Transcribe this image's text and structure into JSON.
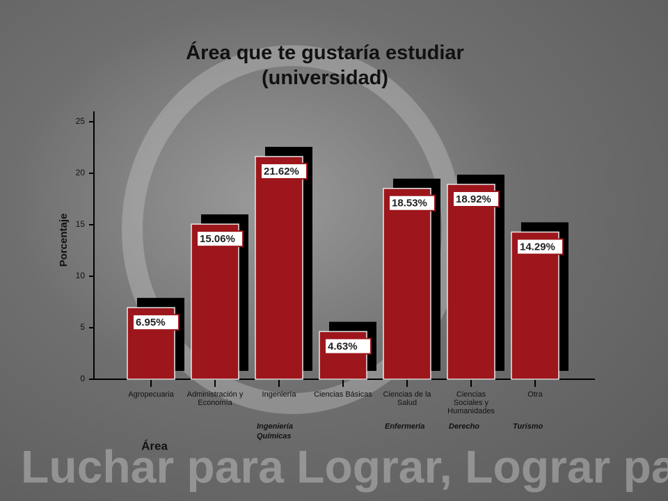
{
  "chart_data": {
    "type": "bar",
    "title": "Área que te gustaría estudiar (universidad)",
    "background_text": "Luchar para Lograr, Lograr para Dar",
    "y_label": "Porcentaje",
    "x_label": "Área",
    "categories": [
      "Agropecuaria",
      "Administración y Economía",
      "Ingeniería",
      "Ciencias Básicas",
      "Ciencias de la Salud",
      "Ciencias Sociales y Humanidades",
      "Otra"
    ],
    "sub_labels": [
      null,
      null,
      "Ingeniería Químicas",
      null,
      "Enfermería",
      "Derecho",
      "Turismo"
    ],
    "values": [
      6.95,
      15.06,
      21.62,
      4.63,
      18.53,
      18.92,
      14.29
    ],
    "value_labels": [
      "6.95%",
      "15.06%",
      "21.62%",
      "4.63%",
      "18.53%",
      "18.92%",
      "14.29%"
    ],
    "color": "#9c161c",
    "ylim": [
      0,
      25
    ],
    "yticks": [
      0,
      5,
      10,
      15,
      20,
      25
    ],
    "grid": false
  }
}
